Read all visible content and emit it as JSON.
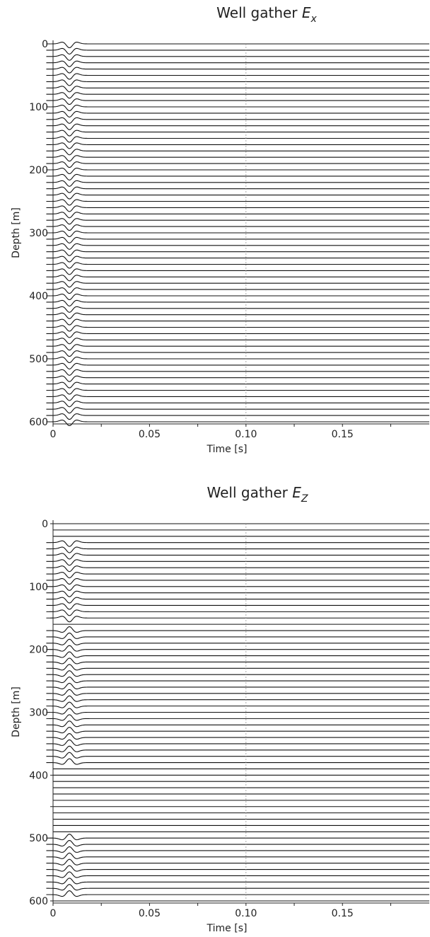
{
  "chart_data": [
    {
      "type": "line",
      "variant": "wiggle-trace well gather",
      "title_text": "Well gather ",
      "title_symbol": "E",
      "title_subscript": "x",
      "xlabel": "Time [s]",
      "ylabel": "Depth [m]",
      "xlim": [
        0,
        0.195
      ],
      "ylim": [
        600,
        0
      ],
      "xticks": [
        0,
        0.05,
        0.1,
        0.15
      ],
      "xtick_labels": [
        "0",
        "0.05",
        "0.10",
        "0.15"
      ],
      "yticks": [
        0,
        100,
        200,
        300,
        400,
        500,
        600
      ],
      "ytick_labels": [
        "0",
        "100",
        "200",
        "300",
        "400",
        "500",
        "600"
      ],
      "trace_depth_start": 0,
      "trace_depth_end": 600,
      "trace_spacing_m": 10,
      "wavelet_center_time_s": 0.0085,
      "reference_line_time_s": 0.1,
      "events": [
        {
          "depth_from": 0,
          "depth_to": 600,
          "polarity": -1
        }
      ],
      "grid": false,
      "legend": "none"
    },
    {
      "type": "line",
      "variant": "wiggle-trace well gather",
      "title_text": "Well gather ",
      "title_symbol": "E",
      "title_subscript": "Z",
      "xlabel": "Time [s]",
      "ylabel": "Depth [m]",
      "xlim": [
        0,
        0.195
      ],
      "ylim": [
        600,
        0
      ],
      "xticks": [
        0,
        0.05,
        0.1,
        0.15
      ],
      "xtick_labels": [
        "0",
        "0.05",
        "0.10",
        "0.15"
      ],
      "yticks": [
        0,
        100,
        200,
        300,
        400,
        500,
        600
      ],
      "ytick_labels": [
        "0",
        "100",
        "200",
        "300",
        "400",
        "500",
        "600"
      ],
      "trace_depth_start": 0,
      "trace_depth_end": 600,
      "trace_spacing_m": 10,
      "wavelet_center_time_s": 0.0085,
      "reference_line_time_s": 0.1,
      "events": [
        {
          "depth_from": 30,
          "depth_to": 150,
          "polarity": -1
        },
        {
          "depth_from": 170,
          "depth_to": 380,
          "polarity": 1
        },
        {
          "depth_from": 500,
          "depth_to": 590,
          "polarity": 1
        }
      ],
      "grid": false,
      "legend": "none"
    }
  ]
}
